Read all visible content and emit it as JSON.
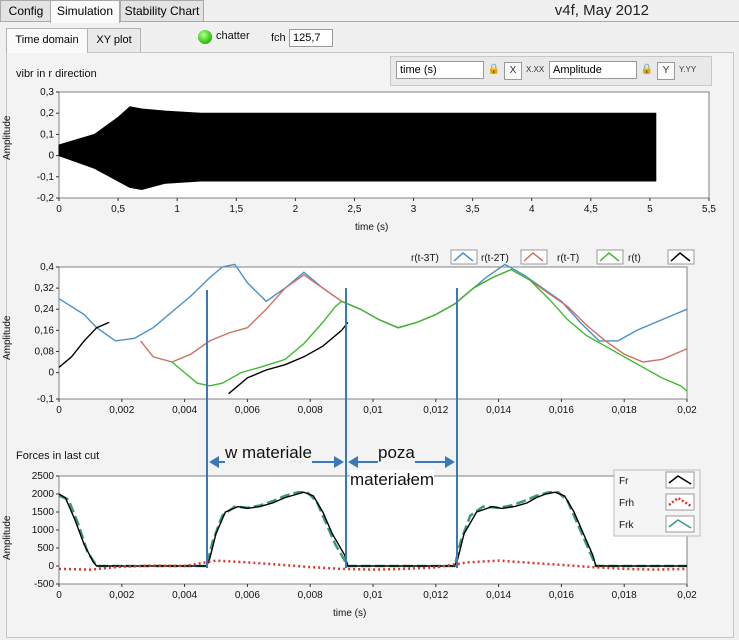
{
  "top_tabs": [
    {
      "label": "Config"
    },
    {
      "label": "Simulation"
    },
    {
      "label": "Stability Chart"
    }
  ],
  "version": "v4f, May 2012",
  "sub_tabs": [
    {
      "label": "Time domain"
    },
    {
      "label": "XY plot"
    }
  ],
  "chatter": {
    "label": "chatter",
    "led_color": "#3fcf1a"
  },
  "fch": {
    "label": "fch",
    "value": "125,7"
  },
  "controls": {
    "x_axis_select": "time (s)",
    "y_axis_select": "Amplitude",
    "x_format": "X.XX",
    "y_format": "Y.YY"
  },
  "annotations": {
    "w_materiale": "w materiale",
    "poza": "poza",
    "materialem": "materiałem"
  },
  "colors": {
    "black": "#000000",
    "blue": "#4a90c8",
    "red": "#d07064",
    "green": "#3dbb2e",
    "dotted_red": "#d9382c",
    "teal": "#3a9a7a",
    "marker": "#3a78b8"
  },
  "chart_data": [
    {
      "type": "area",
      "title": "vibr in r direction",
      "xlabel": "time (s)",
      "ylabel": "Amplitude",
      "xlim": [
        0,
        5.5
      ],
      "ylim": [
        -0.2,
        0.3
      ],
      "x_ticks": [
        "0",
        "0,5",
        "1",
        "1,5",
        "2",
        "2,5",
        "3",
        "3,5",
        "4",
        "4,5",
        "5",
        "5,5"
      ],
      "y_ticks": [
        "0,3",
        "0,2",
        "0,1",
        "0",
        "-0,1",
        "-0,2"
      ],
      "envelope": {
        "x": [
          0,
          0.3,
          0.5,
          0.6,
          0.7,
          0.9,
          1.2,
          1.5,
          2,
          5.05
        ],
        "upper": [
          0.05,
          0.1,
          0.18,
          0.23,
          0.22,
          0.21,
          0.2,
          0.2,
          0.2,
          0.2
        ],
        "lower": [
          0.0,
          -0.06,
          -0.12,
          -0.15,
          -0.16,
          -0.13,
          -0.12,
          -0.12,
          -0.12,
          -0.12
        ]
      }
    },
    {
      "type": "line",
      "title": "",
      "xlabel": "",
      "ylabel": "Amplitude",
      "xlim": [
        0,
        0.02
      ],
      "ylim": [
        -0.1,
        0.4
      ],
      "x_ticks": [
        "0",
        "0,002",
        "0,004",
        "0,006",
        "0,008",
        "0,01",
        "0,012",
        "0,014",
        "0,016",
        "0,018",
        "0,02"
      ],
      "y_ticks": [
        "0,4",
        "0,32",
        "0,24",
        "0,16",
        "0,08",
        "0",
        "-0,1"
      ],
      "legend_position": "top-right",
      "series": [
        {
          "name": "r(t-3T)",
          "color": "#4a90c8",
          "x": [
            0,
            0.0008,
            0.0012,
            0.0018,
            0.0024,
            0.003,
            0.0036,
            0.0042,
            0.0048,
            0.0052,
            0.0056,
            0.006,
            0.0066,
            0.0072,
            0.0078,
            0.0084,
            0.009,
            0.0096,
            0.0102,
            0.0108,
            0.0114,
            0.012,
            0.0126,
            0.0132,
            0.0136,
            0.0142,
            0.0148,
            0.0154,
            0.016,
            0.0166,
            0.0172,
            0.0178,
            0.0184,
            0.019,
            0.0196,
            0.02
          ],
          "y": [
            0.28,
            0.22,
            0.17,
            0.12,
            0.13,
            0.17,
            0.23,
            0.29,
            0.36,
            0.4,
            0.41,
            0.34,
            0.27,
            0.32,
            0.38,
            0.32,
            0.27,
            0.24,
            0.2,
            0.17,
            0.19,
            0.22,
            0.26,
            0.32,
            0.36,
            0.41,
            0.37,
            0.32,
            0.27,
            0.19,
            0.12,
            0.12,
            0.16,
            0.19,
            0.22,
            0.24
          ]
        },
        {
          "name": "r(t-2T)",
          "color": "#d07064",
          "x": [
            0.0026,
            0.003,
            0.0036,
            0.0042,
            0.0048,
            0.0054,
            0.006,
            0.0066,
            0.0072,
            0.0078,
            0.0084,
            0.009,
            0.0096,
            0.0102,
            0.0108,
            0.0114,
            0.012,
            0.0126,
            0.0132,
            0.0138,
            0.0144,
            0.015,
            0.0156,
            0.0162,
            0.0168,
            0.0174,
            0.018,
            0.0186,
            0.0192,
            0.0198,
            0.02
          ],
          "y": [
            0.12,
            0.06,
            0.04,
            0.07,
            0.12,
            0.15,
            0.17,
            0.24,
            0.32,
            0.37,
            0.32,
            0.27,
            0.24,
            0.2,
            0.17,
            0.19,
            0.22,
            0.26,
            0.32,
            0.36,
            0.39,
            0.35,
            0.3,
            0.25,
            0.18,
            0.12,
            0.07,
            0.04,
            0.05,
            0.08,
            0.09
          ]
        },
        {
          "name": "r(t-T)",
          "color": "#3dbb2e",
          "x": [
            0.0036,
            0.004,
            0.0044,
            0.0048,
            0.0052,
            0.0058,
            0.0064,
            0.0072,
            0.0078,
            0.0084,
            0.0088,
            0.009,
            0.0096,
            0.0102,
            0.0108,
            0.0114,
            0.012,
            0.0126,
            0.0132,
            0.0138,
            0.0144,
            0.015,
            0.0156,
            0.0162,
            0.0168,
            0.0174,
            0.018,
            0.0186,
            0.0192,
            0.0198,
            0.02
          ],
          "y": [
            0.04,
            0.0,
            -0.04,
            -0.05,
            -0.04,
            0.0,
            0.02,
            0.05,
            0.11,
            0.19,
            0.25,
            0.27,
            0.24,
            0.2,
            0.17,
            0.19,
            0.22,
            0.26,
            0.32,
            0.36,
            0.39,
            0.35,
            0.28,
            0.2,
            0.14,
            0.1,
            0.06,
            0.02,
            -0.02,
            -0.05,
            -0.07
          ]
        },
        {
          "name": "r(t)",
          "color": "#000000",
          "x": [
            0,
            0.0004,
            0.0008,
            0.0012,
            0.0016,
            0.002,
            0.0024,
            0.003,
            0.0036,
            0.0042,
            0.0048,
            0.0054,
            0.006,
            0.0066,
            0.0072,
            0.0078,
            0.0084,
            0.009,
            0.0092
          ],
          "y": [
            0.02,
            0.06,
            0.12,
            0.17,
            0.19,
            null,
            null,
            null,
            null,
            null,
            null,
            -0.08,
            -0.02,
            0.01,
            0.03,
            0.06,
            0.1,
            0.16,
            0.19
          ]
        }
      ]
    },
    {
      "type": "line",
      "title": "Forces in last cut",
      "xlabel": "time (s)",
      "ylabel": "Amplitude",
      "xlim": [
        0,
        0.02
      ],
      "ylim": [
        -500,
        2500
      ],
      "x_ticks": [
        "0",
        "0,002",
        "0,004",
        "0,006",
        "0,008",
        "0,01",
        "0,012",
        "0,014",
        "0,016",
        "0,018",
        "0,02"
      ],
      "y_ticks": [
        "2500",
        "2000",
        "1500",
        "1000",
        "500",
        "0",
        "-500"
      ],
      "legend_position": "top-right",
      "series": [
        {
          "name": "Fr",
          "color": "#000000",
          "x": [
            0,
            0.0002,
            0.0005,
            0.0008,
            0.0011,
            0.0012,
            0.002,
            0.004,
            0.0047,
            0.0048,
            0.005,
            0.0053,
            0.0057,
            0.006,
            0.0064,
            0.0068,
            0.0072,
            0.0076,
            0.0078,
            0.0081,
            0.0084,
            0.0087,
            0.0091,
            0.0092,
            0.01,
            0.012,
            0.0126,
            0.0127,
            0.0129,
            0.0133,
            0.0138,
            0.0141,
            0.0145,
            0.0149,
            0.0152,
            0.0155,
            0.0158,
            0.0161,
            0.0164,
            0.0167,
            0.017,
            0.0171,
            0.018,
            0.02
          ],
          "y": [
            2000,
            1900,
            1300,
            600,
            100,
            0,
            0,
            0,
            0,
            200,
            900,
            1500,
            1650,
            1600,
            1650,
            1750,
            1900,
            2000,
            2050,
            1950,
            1500,
            900,
            300,
            0,
            0,
            0,
            0,
            200,
            900,
            1500,
            1650,
            1600,
            1650,
            1750,
            1900,
            2000,
            2050,
            1950,
            1500,
            900,
            300,
            0,
            0,
            0
          ]
        },
        {
          "name": "Frh",
          "color": "#d9382c",
          "x": [
            0,
            0.001,
            0.002,
            0.003,
            0.004,
            0.005,
            0.006,
            0.007,
            0.008,
            0.009,
            0.01,
            0.011,
            0.012,
            0.013,
            0.014,
            0.015,
            0.016,
            0.017,
            0.018,
            0.019,
            0.02
          ],
          "y": [
            -80,
            -100,
            -20,
            10,
            0,
            150,
            100,
            40,
            -30,
            -80,
            -100,
            -80,
            -40,
            100,
            150,
            90,
            30,
            -30,
            -80,
            -100,
            -80
          ]
        },
        {
          "name": "Frk",
          "color": "#3a9a7a",
          "x": [
            0,
            0.0003,
            0.0006,
            0.0009,
            0.0012,
            0.002,
            0.004,
            0.0047,
            0.0049,
            0.0052,
            0.0056,
            0.006,
            0.0064,
            0.0068,
            0.0072,
            0.0076,
            0.0079,
            0.0082,
            0.0085,
            0.0088,
            0.0092,
            0.01,
            0.012,
            0.0126,
            0.0128,
            0.0131,
            0.0135,
            0.014,
            0.0144,
            0.0148,
            0.0152,
            0.0156,
            0.0159,
            0.0162,
            0.0165,
            0.0168,
            0.0171,
            0.018,
            0.02
          ],
          "y": [
            1950,
            1850,
            1200,
            400,
            0,
            0,
            0,
            0,
            700,
            1400,
            1650,
            1620,
            1680,
            1800,
            1950,
            2050,
            2050,
            1800,
            1200,
            600,
            0,
            0,
            0,
            0,
            700,
            1400,
            1650,
            1620,
            1680,
            1800,
            1950,
            2050,
            2050,
            1800,
            1200,
            600,
            0,
            0,
            0
          ]
        }
      ]
    }
  ]
}
